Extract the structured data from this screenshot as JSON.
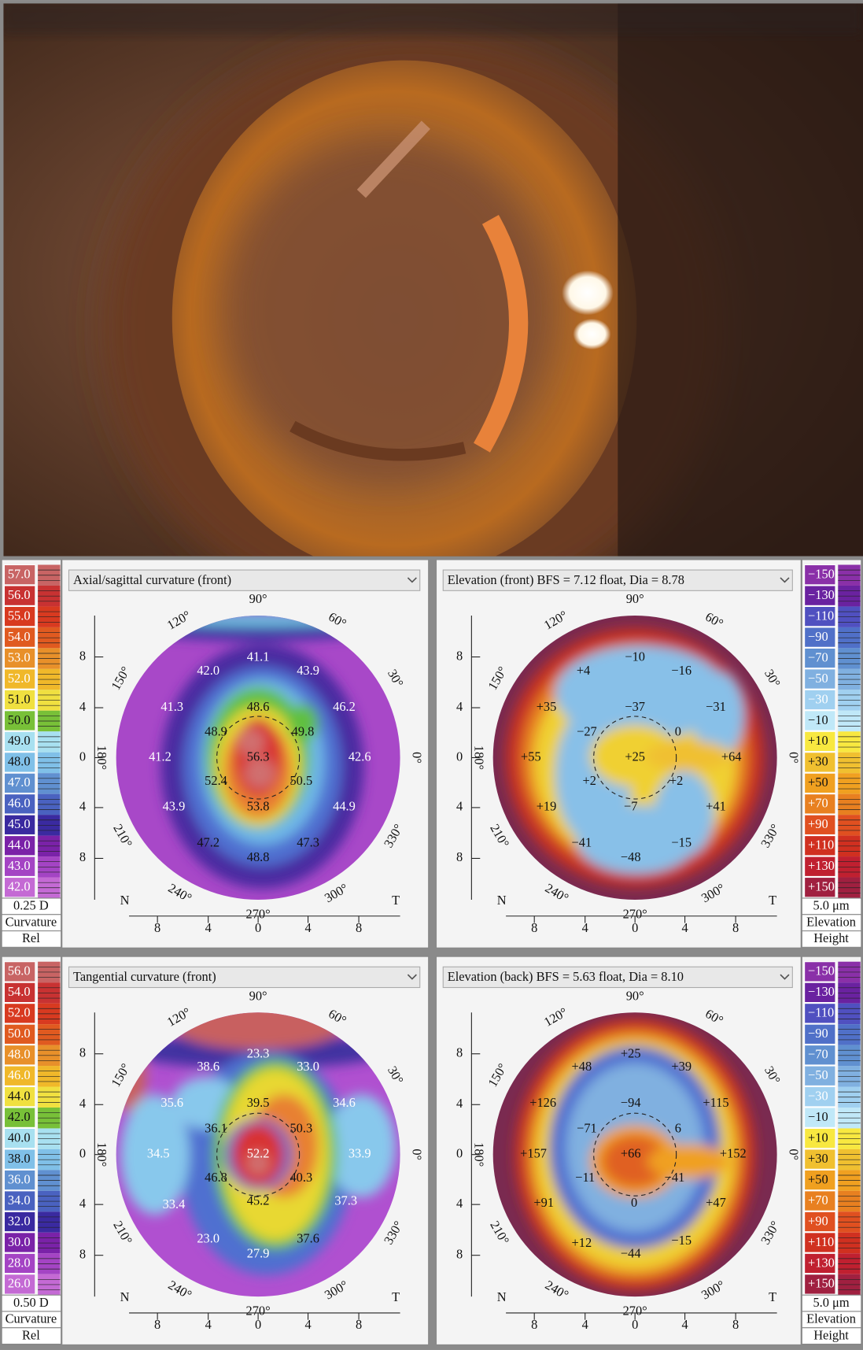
{
  "angles": [
    "0°",
    "30°",
    "60°",
    "90°",
    "120°",
    "150°",
    "180°",
    "210°",
    "240°",
    "270°",
    "300°",
    "330°"
  ],
  "axis_ticks": [
    "8",
    "4",
    "0",
    "4",
    "8"
  ],
  "nasal": "N",
  "temporal": "T",
  "panels": [
    {
      "title": "Axial/sagittal curvature (front)",
      "scale": [
        "57.0",
        "56.0",
        "55.0",
        "54.0",
        "53.0",
        "52.0",
        "51.0",
        "50.0",
        "49.0",
        "48.0",
        "47.0",
        "46.0",
        "45.0",
        "44.0",
        "43.0",
        "42.0"
      ],
      "step": "0.25 D",
      "kind": "Curvature",
      "mode": "Rel",
      "labels": [
        "41.1",
        "42.0",
        "43.9",
        "41.3",
        "48.6",
        "46.2",
        "48.9",
        "49.8",
        "41.2",
        "56.3",
        "42.6",
        "52.4",
        "50.5",
        "43.9",
        "53.8",
        "44.9",
        "47.2",
        "47.3",
        "48.8"
      ]
    },
    {
      "title": "Elevation (front) BFS = 7.12 float, Dia = 8.78",
      "scale": [
        "−150",
        "−130",
        "−110",
        "−90",
        "−70",
        "−50",
        "−30",
        "−10",
        "+10",
        "+30",
        "+50",
        "+70",
        "+90",
        "+110",
        "+130",
        "+150"
      ],
      "step": "5.0 μm",
      "kind": "Elevation",
      "mode": "Height",
      "labels": [
        "−10",
        "+4",
        "−16",
        "+35",
        "−37",
        "−31",
        "−27",
        "0",
        "+55",
        "+25",
        "+64",
        "+2",
        "+2",
        "+19",
        "−7",
        "+41",
        "−41",
        "−15",
        "−48"
      ]
    },
    {
      "title": "Tangential curvature (front)",
      "scale": [
        "56.0",
        "54.0",
        "52.0",
        "50.0",
        "48.0",
        "46.0",
        "44.0",
        "42.0",
        "40.0",
        "38.0",
        "36.0",
        "34.0",
        "32.0",
        "30.0",
        "28.0",
        "26.0"
      ],
      "step": "0.50 D",
      "kind": "Curvature",
      "mode": "Rel",
      "labels": [
        "23.3",
        "38.6",
        "33.0",
        "35.6",
        "39.5",
        "34.6",
        "36.1",
        "50.3",
        "34.5",
        "52.2",
        "33.9",
        "46.8",
        "40.3",
        "33.4",
        "45.2",
        "37.3",
        "23.0",
        "37.6",
        "27.9"
      ]
    },
    {
      "title": "Elevation (back) BFS = 5.63 float, Dia = 8.10",
      "scale": [
        "−150",
        "−130",
        "−110",
        "−90",
        "−70",
        "−50",
        "−30",
        "−10",
        "+10",
        "+30",
        "+50",
        "+70",
        "+90",
        "+110",
        "+130",
        "+150"
      ],
      "step": "5.0 μm",
      "kind": "Elevation",
      "mode": "Height",
      "labels": [
        "+25",
        "+48",
        "+39",
        "+126",
        "−94",
        "+115",
        "−71",
        "6",
        "+157",
        "+66",
        "+152",
        "−11",
        "−41",
        "+91",
        "0",
        "+47",
        "+12",
        "−15",
        "−44"
      ]
    }
  ]
}
